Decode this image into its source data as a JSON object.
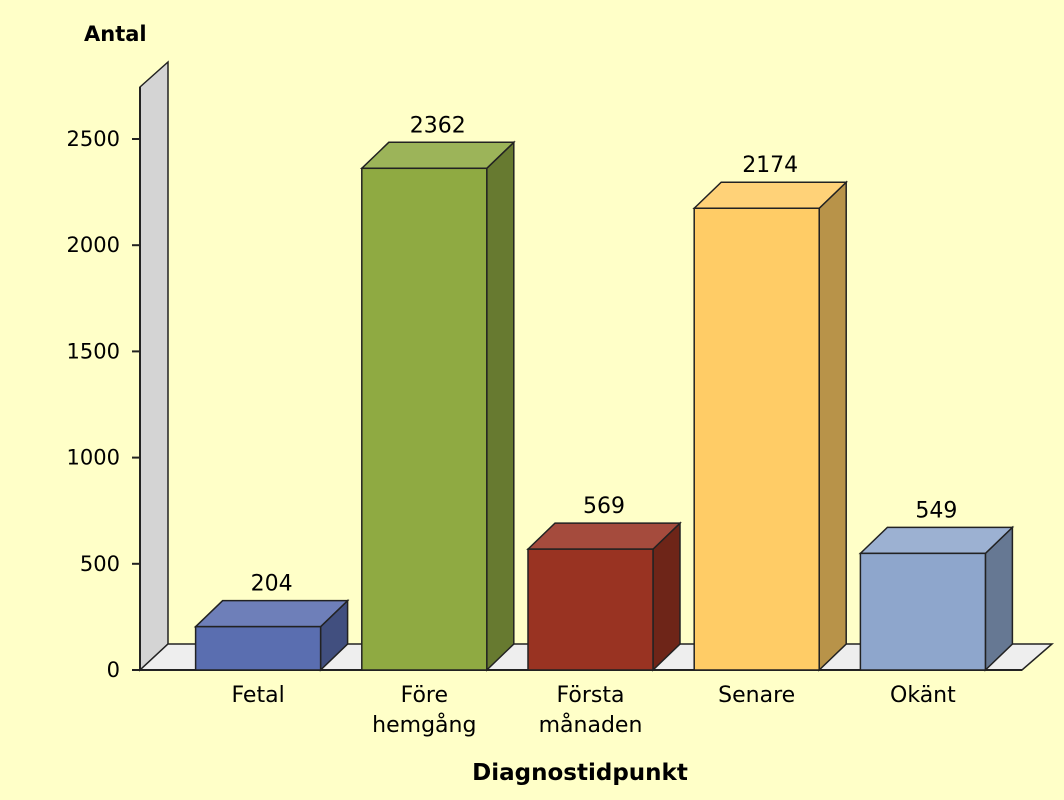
{
  "chart_data": {
    "type": "bar",
    "ylabel": "Antal",
    "xlabel": "Diagnostidpunkt",
    "categories": [
      [
        "Fetal"
      ],
      [
        "Före",
        "hemgång"
      ],
      [
        "Första",
        "månaden"
      ],
      [
        "Senare"
      ],
      [
        "Okänt"
      ]
    ],
    "values": [
      204,
      2362,
      569,
      2174,
      549
    ],
    "colors": [
      "#5a6eb0",
      "#8faa42",
      "#993322",
      "#ffcc66",
      "#8ea6cc"
    ],
    "ylim": [
      0,
      2500
    ],
    "yticks": [
      "0",
      "500",
      "1000",
      "1500",
      "2000",
      "2500"
    ],
    "data_labels": [
      "204",
      "2362",
      "569",
      "2174",
      "549"
    ],
    "style": "3d",
    "grid": false
  }
}
